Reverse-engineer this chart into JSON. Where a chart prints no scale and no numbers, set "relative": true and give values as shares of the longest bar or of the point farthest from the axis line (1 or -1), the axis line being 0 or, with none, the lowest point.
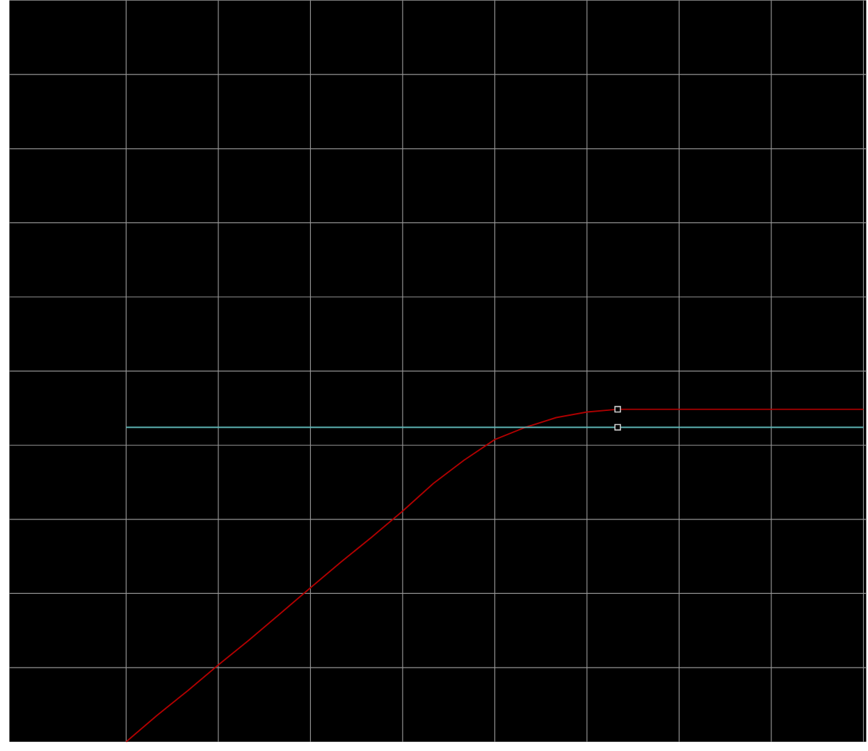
{
  "chart_data": {
    "type": "line",
    "relative": true,
    "grid": true,
    "marker": "none",
    "line_style": "solid",
    "categories": [
      null,
      null,
      null,
      null,
      null,
      null,
      null,
      null,
      null,
      null,
      null,
      null,
      null,
      null,
      null,
      null,
      null,
      null,
      null,
      null,
      null,
      null,
      null,
      null,
      null
    ],
    "series": [
      {
        "color": "#b00000",
        "values": [
          0,
          0.079,
          0.153,
          0.231,
          0.306,
          0.384,
          0.463,
          0.541,
          0.616,
          0.694,
          0.777,
          0.847,
          0.909,
          0.946,
          0.975,
          0.992,
          1,
          1,
          1,
          1,
          1,
          1,
          1,
          1,
          1
        ]
      },
      {
        "color": "#5fb8b8",
        "values": [
          0.946,
          0.946,
          0.946,
          0.946,
          0.946,
          0.946,
          0.946,
          0.946,
          0.946,
          0.946,
          0.946,
          0.946,
          0.946,
          0.946,
          0.946,
          0.946,
          0.946,
          0.946,
          0.946,
          0.946,
          0.946,
          0.946,
          0.946,
          0.946,
          0.946
        ]
      }
    ]
  }
}
